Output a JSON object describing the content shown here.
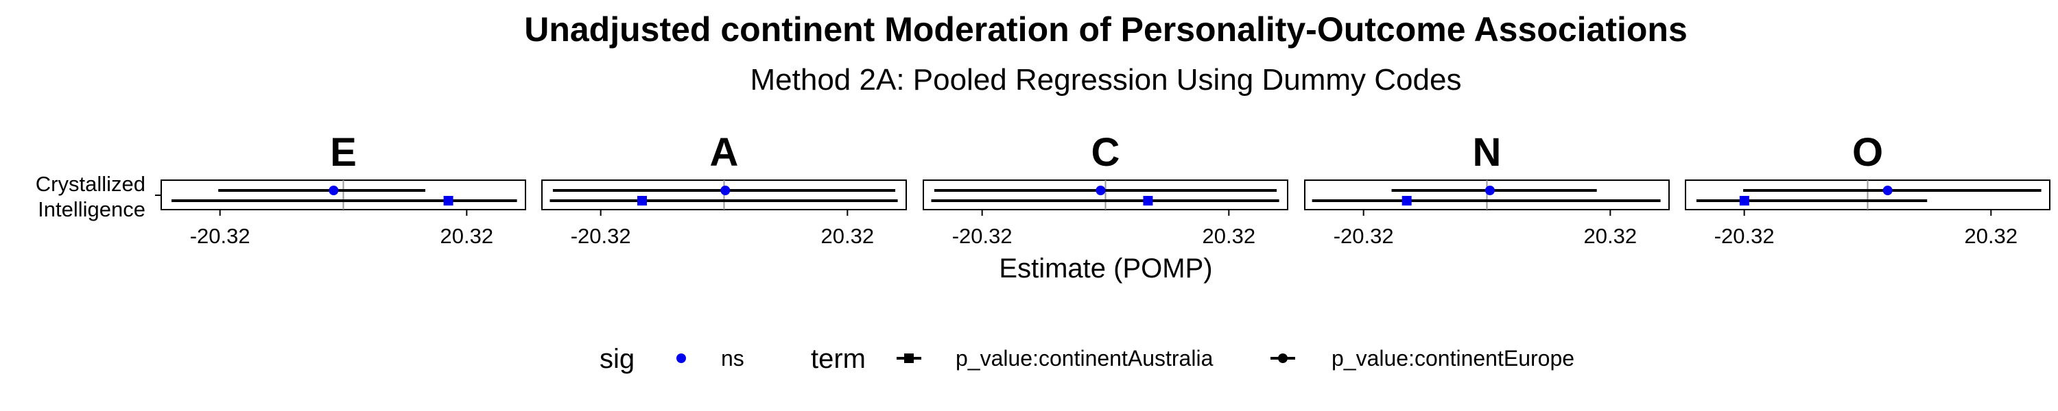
{
  "chart_data": {
    "type": "forest",
    "title": "Unadjusted continent Moderation of Personality-Outcome Associations",
    "subtitle": "Method 2A: Pooled Regression Using Dummy Codes",
    "xlabel": "Estimate (POMP)",
    "y_category": [
      "Crystallized",
      "Intelligence"
    ],
    "xlim": [
      -30,
      30
    ],
    "x_ticks": [
      -20.32,
      20.32
    ],
    "x_tick_labels": [
      "-20.32",
      "20.32"
    ],
    "reference_line": 0,
    "facets": [
      "E",
      "A",
      "C",
      "N",
      "O"
    ],
    "series": [
      {
        "name": "p_value:continentEurope",
        "shape": "circle",
        "estimates": [
          -1.6,
          0.2,
          -0.8,
          0.5,
          3.3
        ],
        "ci_low": [
          -20.6,
          -28.2,
          -28.2,
          -15.7,
          -20.5
        ],
        "ci_high": [
          13.5,
          28.2,
          28.2,
          18.1,
          28.6
        ]
      },
      {
        "name": "p_value:continentAustralia",
        "shape": "square",
        "estimates": [
          17.3,
          -13.5,
          7.0,
          -13.2,
          -20.3
        ],
        "ci_low": [
          -28.3,
          -28.7,
          -28.7,
          -28.8,
          -28.2
        ],
        "ci_high": [
          28.6,
          28.6,
          28.6,
          28.6,
          9.8
        ]
      }
    ],
    "point_color": "#0000ee",
    "line_color": "#000000",
    "grid": false,
    "legend_position": "bottom",
    "legend": {
      "sig_title": "sig",
      "sig_items": [
        {
          "label": "ns",
          "color": "#0000ee"
        }
      ],
      "term_title": "term",
      "term_items": [
        {
          "label": "p_value:continentAustralia",
          "shape": "square"
        },
        {
          "label": "p_value:continentEurope",
          "shape": "circle"
        }
      ]
    }
  }
}
